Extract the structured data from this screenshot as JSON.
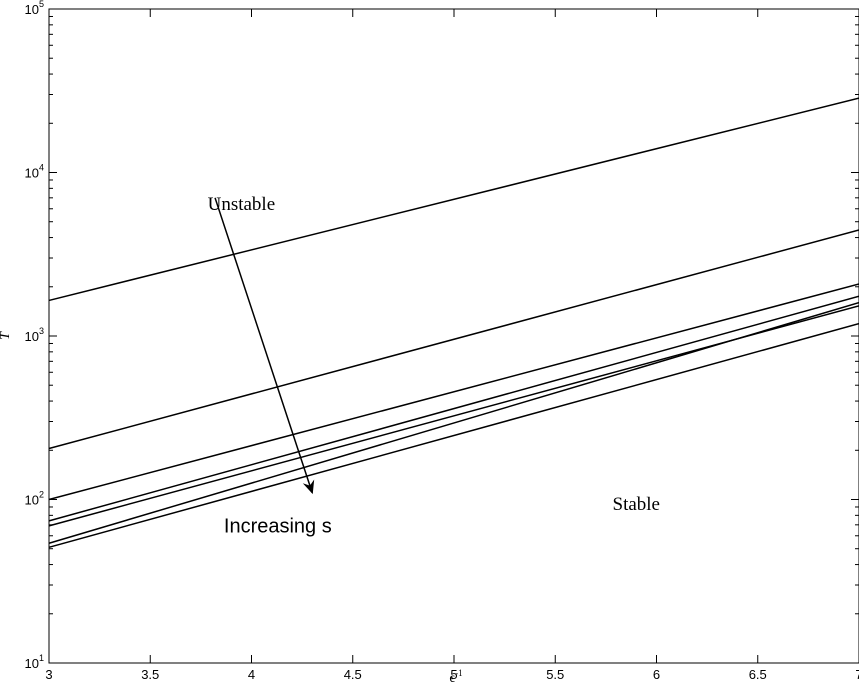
{
  "chart_data": {
    "type": "line",
    "title": "",
    "xlabel": "ε⁻¹",
    "ylabel": "T̄",
    "x_scale": "linear",
    "y_scale": "log",
    "xlim": [
      3,
      7
    ],
    "ylim": [
      10,
      100000
    ],
    "x_ticks": [
      3,
      3.5,
      4,
      4.5,
      5,
      5.5,
      6,
      6.5,
      7
    ],
    "x_tick_labels": [
      "3",
      "3.5",
      "4",
      "4.5",
      "5",
      "5.5",
      "6",
      "6.5",
      "7"
    ],
    "y_ticks": [
      10,
      100,
      1000,
      10000,
      100000
    ],
    "y_tick_labels": [
      {
        "base": "10",
        "exp": "1"
      },
      {
        "base": "10",
        "exp": "2"
      },
      {
        "base": "10",
        "exp": "3"
      },
      {
        "base": "10",
        "exp": "4"
      },
      {
        "base": "10",
        "exp": "5"
      }
    ],
    "grid": false,
    "line_color": "#000000",
    "series": [
      {
        "x": [
          3,
          7
        ],
        "y": [
          1650,
          28500
        ]
      },
      {
        "x": [
          3,
          7
        ],
        "y": [
          205,
          4450
        ]
      },
      {
        "x": [
          3,
          7
        ],
        "y": [
          100,
          2080
        ]
      },
      {
        "x": [
          3,
          7
        ],
        "y": [
          74,
          1750
        ]
      },
      {
        "x": [
          3,
          7
        ],
        "y": [
          69,
          1530
        ]
      },
      {
        "x": [
          3,
          7
        ],
        "y": [
          54,
          1600
        ]
      },
      {
        "x": [
          3,
          7
        ],
        "y": [
          51,
          1190
        ]
      }
    ],
    "annotations": [
      {
        "text": "Unstable",
        "x": 3.95,
        "y": 5900
      },
      {
        "text": "Stable",
        "x": 5.9,
        "y": 86
      },
      {
        "text": "Increasing s",
        "x": 4.13,
        "y": 63
      }
    ],
    "arrow": {
      "from": {
        "x": 3.82,
        "y": 7000
      },
      "to": {
        "x": 4.3,
        "y": 110
      }
    }
  }
}
